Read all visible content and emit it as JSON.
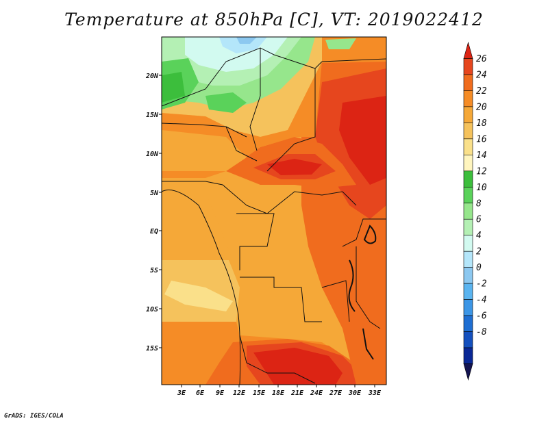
{
  "title": "Temperature at 850hPa [C], VT: 2019022412",
  "credit": "GrADS: IGES/COLA",
  "map": {
    "lat_labels": [
      "20N",
      "15N",
      "10N",
      "5N",
      "EQ",
      "5S",
      "10S",
      "15S"
    ],
    "lon_labels": [
      "3E",
      "6E",
      "9E",
      "12E",
      "15E",
      "18E",
      "21E",
      "24E",
      "27E",
      "30E",
      "33E"
    ]
  },
  "colorbar": {
    "labels": [
      "26",
      "24",
      "22",
      "20",
      "18",
      "16",
      "14",
      "12",
      "10",
      "8",
      "6",
      "4",
      "2",
      "0",
      "-2",
      "-4",
      "-6",
      "-8"
    ],
    "colors": [
      "#dc2414",
      "#e6461e",
      "#f06c1e",
      "#f58c26",
      "#f5a838",
      "#f5c25c",
      "#fae08a",
      "#fff5be",
      "#3cbe3c",
      "#5ad25a",
      "#96e68c",
      "#b4f0b4",
      "#d2faf0",
      "#b4e6fa",
      "#8cc8f0",
      "#5ab4f0",
      "#3c96e6",
      "#1e6ed2",
      "#1450be",
      "#0a2896",
      "#141450"
    ]
  },
  "colors": {
    "background": "#ffffff",
    "border": "#000000"
  }
}
